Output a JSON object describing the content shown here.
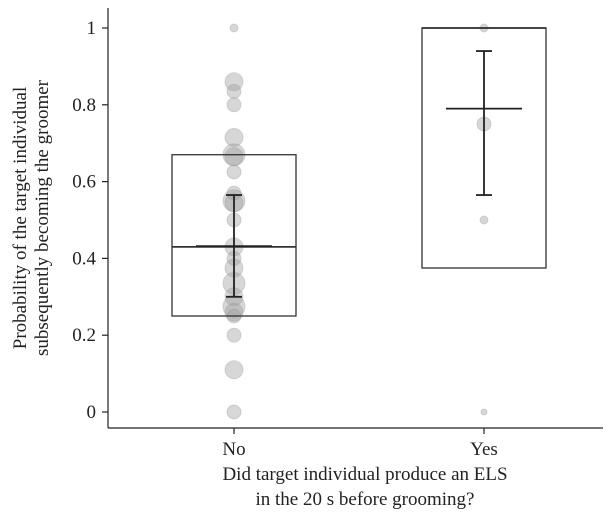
{
  "chart_data": {
    "type": "scatter",
    "xlabel_lines": [
      "Did target individual produce an ELS",
      "in the 20 s before grooming?"
    ],
    "ylabel_lines": [
      "Probability of the target individual",
      "subsequently becoming the groomer"
    ],
    "categories": [
      "No",
      "Yes"
    ],
    "ylim": [
      0,
      1
    ],
    "yticks": [
      0,
      0.2,
      0.4,
      0.6,
      0.8,
      1
    ],
    "ytick_labels": [
      "0",
      "0.2",
      "0.4",
      "0.6",
      "0.8",
      "1"
    ],
    "boxes": [
      {
        "category": "No",
        "q1": 0.25,
        "median": 0.43,
        "q3": 0.67,
        "mean": 0.432,
        "ci_low": 0.3,
        "ci_high": 0.565
      },
      {
        "category": "Yes",
        "q1": 0.375,
        "median": 1.0,
        "q3": 1.0,
        "mean": 0.79,
        "ci_low": 0.565,
        "ci_high": 0.94
      }
    ],
    "points": [
      {
        "category": "No",
        "y": 1.0,
        "size": 1
      },
      {
        "category": "No",
        "y": 0.86,
        "size": 3
      },
      {
        "category": "No",
        "y": 0.835,
        "size": 2
      },
      {
        "category": "No",
        "y": 0.8,
        "size": 2
      },
      {
        "category": "No",
        "y": 0.715,
        "size": 3
      },
      {
        "category": "No",
        "y": 0.67,
        "size": 4
      },
      {
        "category": "No",
        "y": 0.665,
        "size": 3
      },
      {
        "category": "No",
        "y": 0.625,
        "size": 2
      },
      {
        "category": "No",
        "y": 0.57,
        "size": 2
      },
      {
        "category": "No",
        "y": 0.55,
        "size": 4
      },
      {
        "category": "No",
        "y": 0.545,
        "size": 3
      },
      {
        "category": "No",
        "y": 0.5,
        "size": 2
      },
      {
        "category": "No",
        "y": 0.43,
        "size": 3
      },
      {
        "category": "No",
        "y": 0.4,
        "size": 2
      },
      {
        "category": "No",
        "y": 0.375,
        "size": 3
      },
      {
        "category": "No",
        "y": 0.335,
        "size": 4
      },
      {
        "category": "No",
        "y": 0.3,
        "size": 3
      },
      {
        "category": "No",
        "y": 0.275,
        "size": 4
      },
      {
        "category": "No",
        "y": 0.26,
        "size": 3
      },
      {
        "category": "No",
        "y": 0.25,
        "size": 2
      },
      {
        "category": "No",
        "y": 0.2,
        "size": 2
      },
      {
        "category": "No",
        "y": 0.11,
        "size": 3
      },
      {
        "category": "No",
        "y": 0.0,
        "size": 2
      },
      {
        "category": "Yes",
        "y": 1.0,
        "size": 1
      },
      {
        "category": "Yes",
        "y": 0.75,
        "size": 2
      },
      {
        "category": "Yes",
        "y": 0.5,
        "size": 1
      },
      {
        "category": "Yes",
        "y": 0.0,
        "size": 0
      }
    ],
    "colors": {
      "point": "#9a9a9a",
      "box": "#333333",
      "mean": "#222222"
    }
  }
}
